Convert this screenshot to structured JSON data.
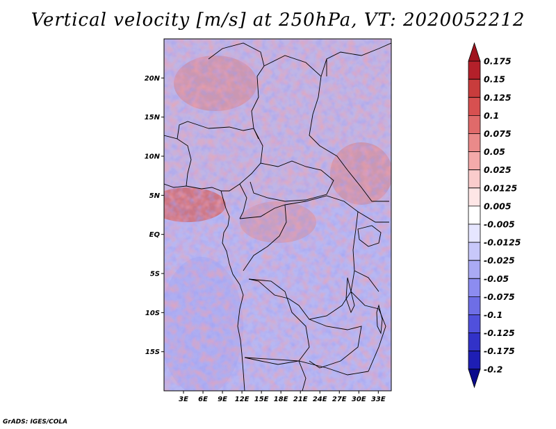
{
  "title": "Vertical velocity [m/s] at 250hPa, VT: 2020052212",
  "credit": "GrADS: IGES/COLA",
  "chart_data": {
    "type": "heatmap",
    "variable": "Vertical velocity",
    "units": "m/s",
    "level": "250hPa",
    "valid_time": "2020052212",
    "lon_range": [
      0,
      35
    ],
    "lat_range": [
      -20,
      25
    ],
    "x_ticks": [
      {
        "value": 3,
        "label": "3E"
      },
      {
        "value": 6,
        "label": "6E"
      },
      {
        "value": 9,
        "label": "9E"
      },
      {
        "value": 12,
        "label": "12E"
      },
      {
        "value": 15,
        "label": "15E"
      },
      {
        "value": 18,
        "label": "18E"
      },
      {
        "value": 21,
        "label": "21E"
      },
      {
        "value": 24,
        "label": "24E"
      },
      {
        "value": 27,
        "label": "27E"
      },
      {
        "value": 30,
        "label": "30E"
      },
      {
        "value": 33,
        "label": "33E"
      }
    ],
    "y_ticks": [
      {
        "value": 20,
        "label": "20N"
      },
      {
        "value": 15,
        "label": "15N"
      },
      {
        "value": 10,
        "label": "10N"
      },
      {
        "value": 5,
        "label": "5N"
      },
      {
        "value": 0,
        "label": "EQ"
      },
      {
        "value": -5,
        "label": "5S"
      },
      {
        "value": -10,
        "label": "10S"
      },
      {
        "value": -15,
        "label": "15S"
      }
    ],
    "colorbar": {
      "levels": [
        "0.175",
        "0.15",
        "0.125",
        "0.1",
        "0.075",
        "0.05",
        "0.025",
        "0.0125",
        "0.005",
        "-0.005",
        "-0.0125",
        "-0.025",
        "-0.05",
        "-0.075",
        "-0.1",
        "-0.125",
        "-0.175",
        "-0.2"
      ],
      "colors": [
        "#a0141e",
        "#b4202a",
        "#c83c3c",
        "#d75050",
        "#e06a6a",
        "#ea8a8a",
        "#f4aaaa",
        "#facccc",
        "#fee6e6",
        "#ffffff",
        "#e6e6ff",
        "#c8c8fa",
        "#aaaaf4",
        "#8c8cf0",
        "#6e6ee6",
        "#5050dc",
        "#3232c8",
        "#1e1eb4",
        "#0a0a8c"
      ]
    }
  }
}
